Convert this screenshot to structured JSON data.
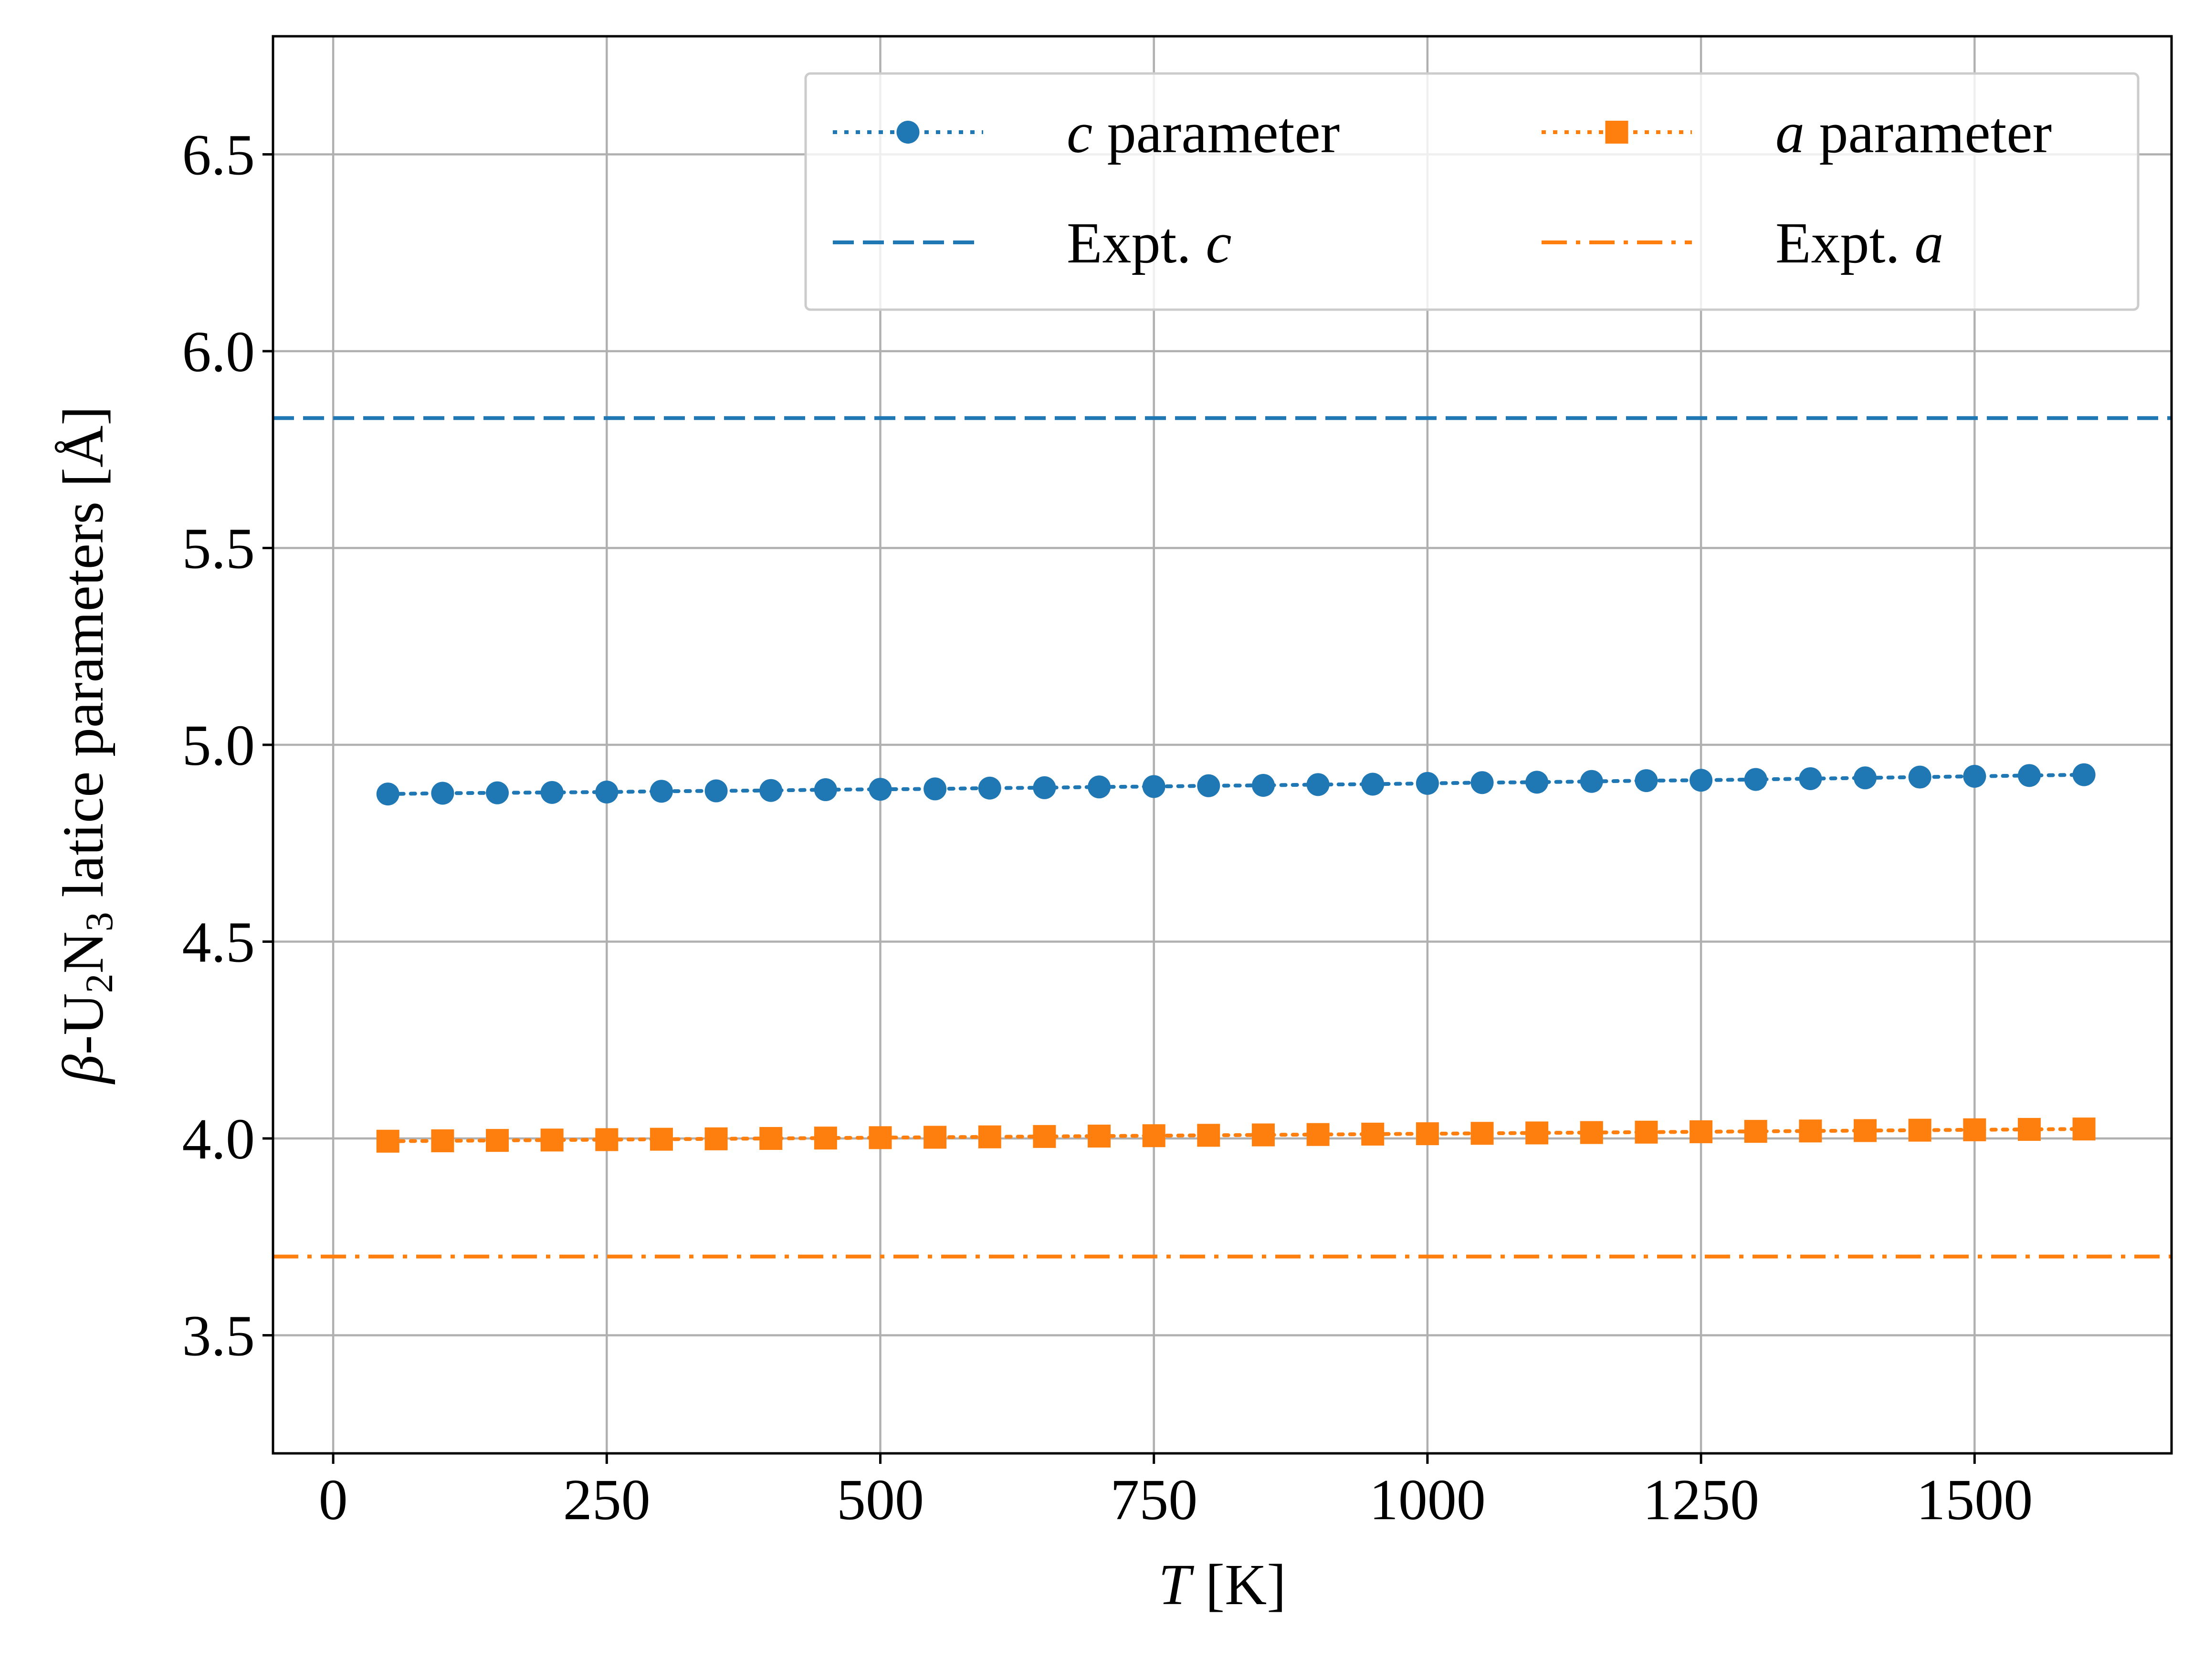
{
  "chart_data": {
    "type": "line",
    "xlabel": {
      "italic": "T",
      "rest": " [K]"
    },
    "ylabel": {
      "prefix_italic": "β",
      "text": "-U",
      "sub1": "2",
      "mid": "N",
      "sub2": "3",
      "rest": " latice parameters [Å]"
    },
    "xlim": [
      -55,
      1680
    ],
    "ylim": [
      3.2,
      6.8
    ],
    "xticks": [
      0,
      250,
      500,
      750,
      1000,
      1250,
      1500
    ],
    "xtick_labels": [
      "0",
      "250",
      "500",
      "750",
      "1000",
      "1250",
      "1500"
    ],
    "yticks": [
      3.5,
      4.0,
      4.5,
      5.0,
      5.5,
      6.0,
      6.5
    ],
    "ytick_labels": [
      "3.5",
      "4.0",
      "4.5",
      "5.0",
      "5.5",
      "6.0",
      "6.5"
    ],
    "grid": true,
    "legend_position": "top-right",
    "x": [
      50,
      100,
      150,
      200,
      250,
      300,
      350,
      400,
      450,
      500,
      550,
      600,
      650,
      700,
      750,
      800,
      850,
      900,
      950,
      1000,
      1050,
      1100,
      1150,
      1200,
      1250,
      1300,
      1350,
      1400,
      1450,
      1500,
      1550,
      1600
    ],
    "series": [
      {
        "name": "c parameter",
        "legend_italic": "c",
        "legend_rest": " parameter",
        "color": "#1f77b4",
        "marker": "circle",
        "linestyle": "dotted",
        "values": [
          4.875,
          4.877,
          4.878,
          4.879,
          4.88,
          4.882,
          4.883,
          4.884,
          4.886,
          4.887,
          4.888,
          4.89,
          4.891,
          4.893,
          4.894,
          4.896,
          4.897,
          4.899,
          4.9,
          4.902,
          4.904,
          4.905,
          4.907,
          4.909,
          4.91,
          4.912,
          4.914,
          4.916,
          4.918,
          4.92,
          4.922,
          4.924
        ]
      },
      {
        "name": "a parameter",
        "legend_italic": "a",
        "legend_rest": " parameter",
        "color": "#ff7f0e",
        "marker": "square",
        "linestyle": "dotted",
        "values": [
          3.993,
          3.994,
          3.995,
          3.996,
          3.997,
          3.998,
          3.999,
          4.0,
          4.001,
          4.002,
          4.003,
          4.004,
          4.005,
          4.006,
          4.007,
          4.008,
          4.009,
          4.01,
          4.011,
          4.012,
          4.013,
          4.014,
          4.015,
          4.016,
          4.017,
          4.018,
          4.019,
          4.02,
          4.021,
          4.022,
          4.023,
          4.024
        ]
      }
    ],
    "hlines": [
      {
        "name": "Expt. c",
        "legend_text": "Expt. ",
        "legend_italic": "c",
        "value": 5.83,
        "color": "#1f77b4",
        "linestyle": "dashed"
      },
      {
        "name": "Expt. a",
        "legend_text": "Expt. ",
        "legend_italic": "a",
        "value": 3.7,
        "color": "#ff7f0e",
        "linestyle": "dashdot"
      }
    ]
  }
}
